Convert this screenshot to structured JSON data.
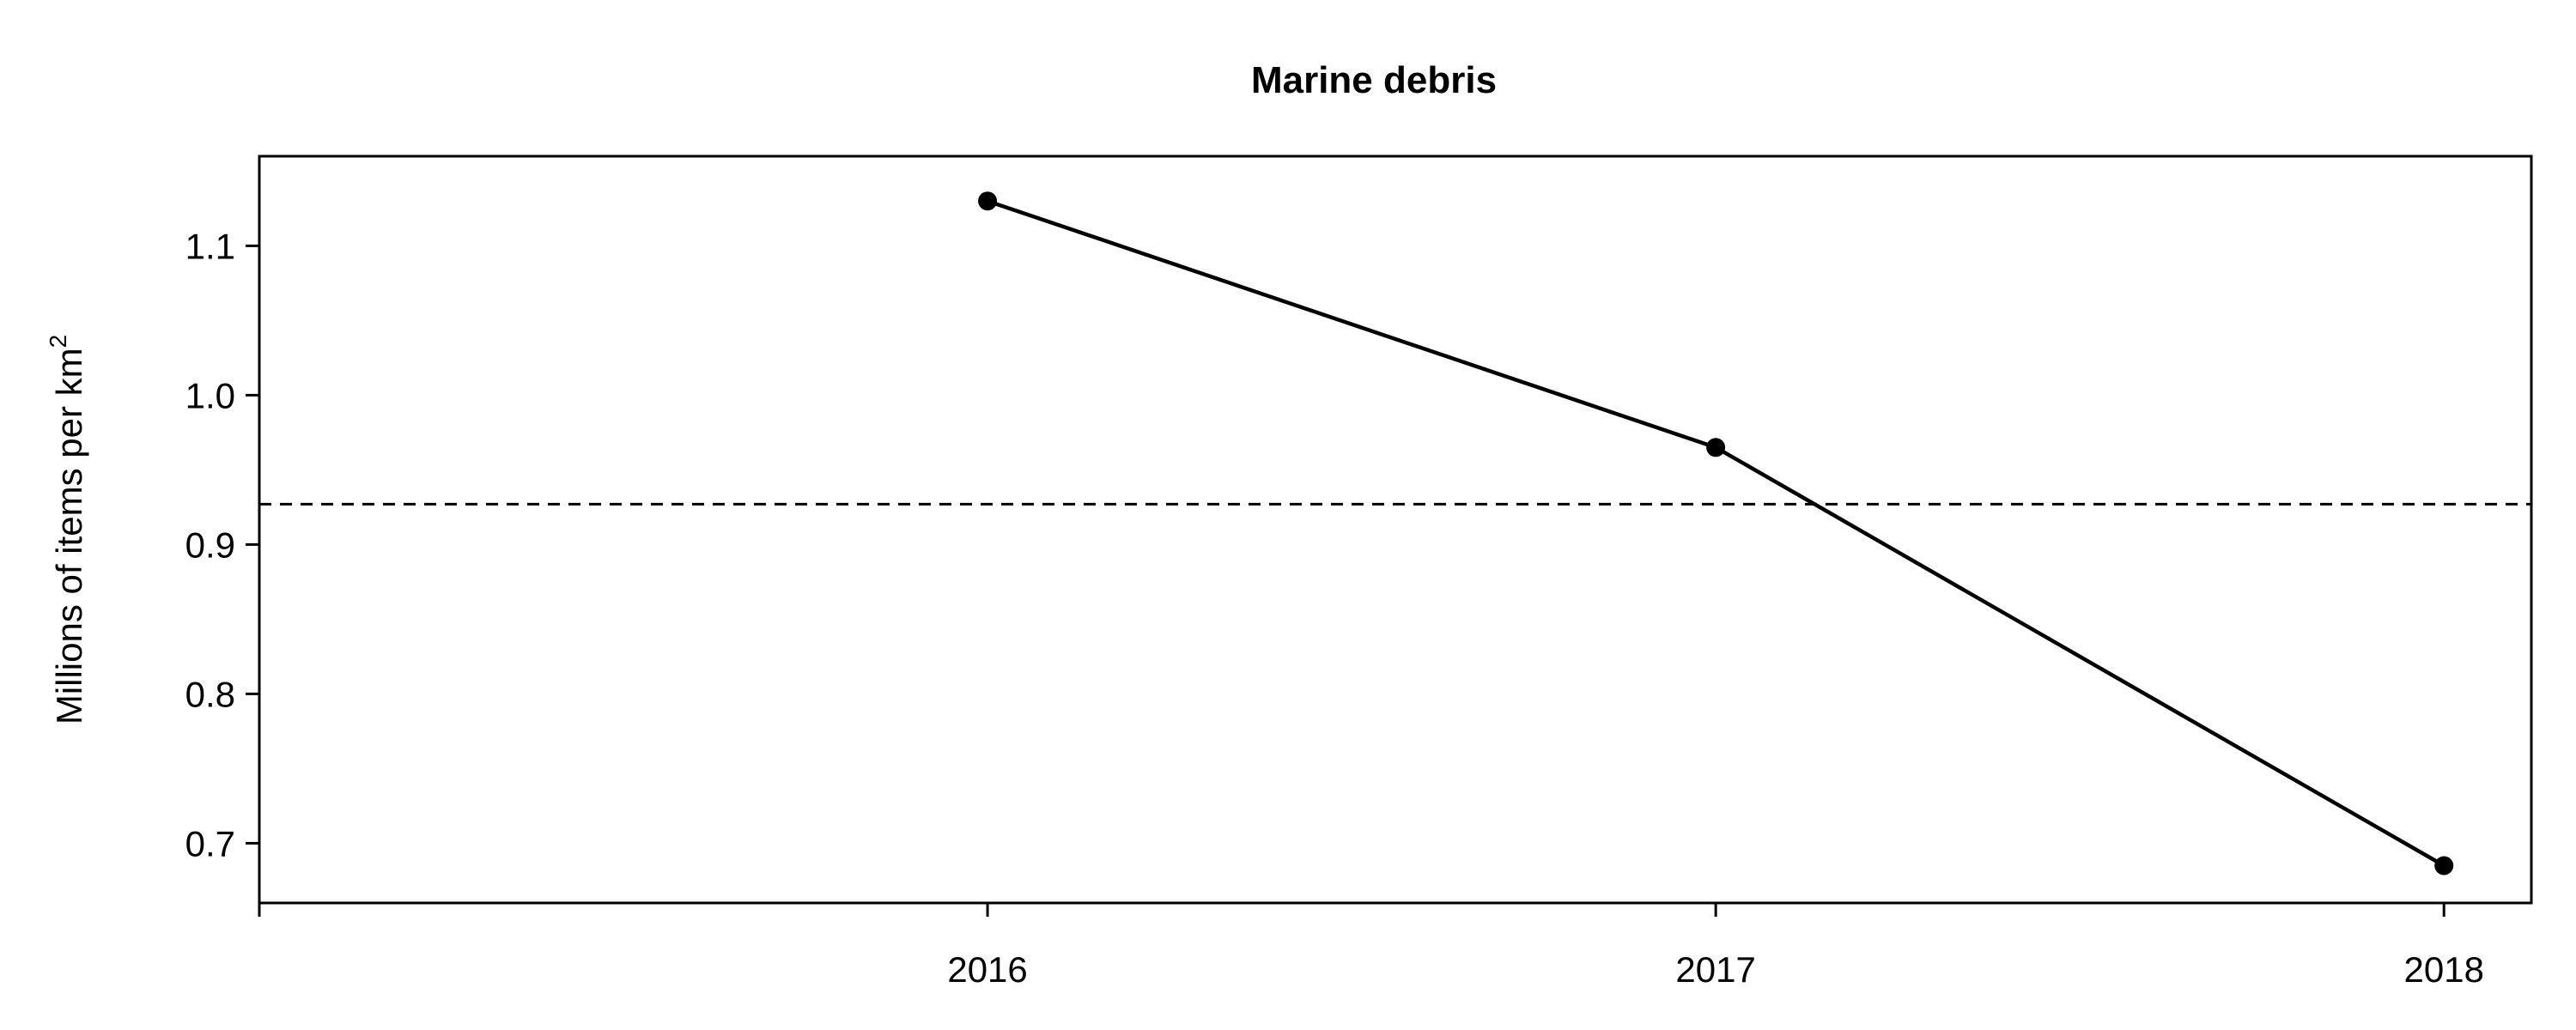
{
  "chart_data": {
    "type": "line",
    "title": "Marine debris",
    "xlabel": "",
    "ylabel_main": "Millions of items per km",
    "ylabel_superscript": "2",
    "x": [
      2016,
      2017,
      2018
    ],
    "x_tick_labels": [
      "2016",
      "2017",
      "2018"
    ],
    "xlim": [
      2015,
      2018.12
    ],
    "y": [
      1.13,
      0.965,
      0.685
    ],
    "y_ticks": [
      0.7,
      0.8,
      0.9,
      1.0,
      1.1
    ],
    "y_tick_labels": [
      "0.7",
      "0.8",
      "0.9",
      "1.0",
      "1.1"
    ],
    "ylim": [
      0.66,
      1.16
    ],
    "reference_line": {
      "y": 0.927,
      "style": "dashed"
    },
    "line_color": "#000000",
    "grid": false,
    "legend": "none"
  }
}
